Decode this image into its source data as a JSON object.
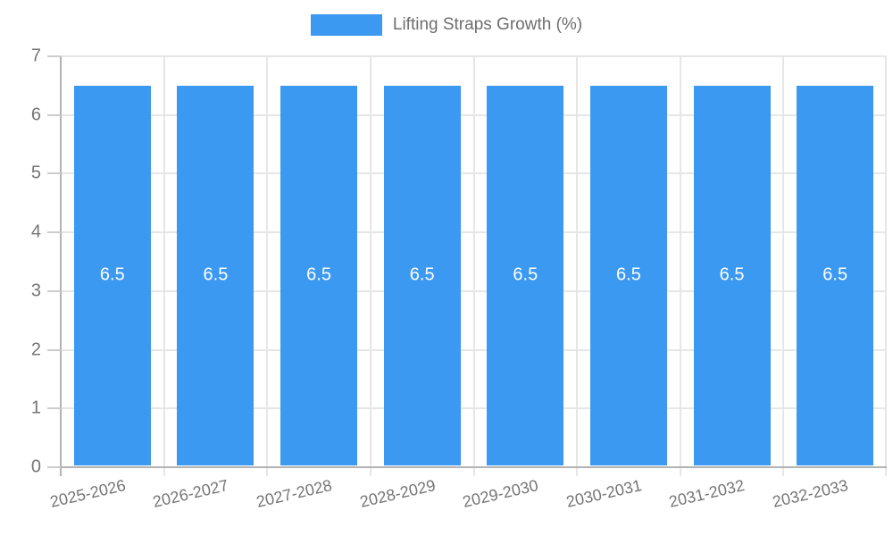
{
  "chart_data": {
    "type": "bar",
    "title": "",
    "legend": "Lifting Straps Growth (%)",
    "legend_position": "top-center",
    "categories": [
      "2025-2026",
      "2026-2027",
      "2027-2028",
      "2028-2029",
      "2029-2030",
      "2030-2031",
      "2031-2032",
      "2032-2033"
    ],
    "values": [
      6.5,
      6.5,
      6.5,
      6.5,
      6.5,
      6.5,
      6.5,
      6.5
    ],
    "value_labels": [
      "6.5",
      "6.5",
      "6.5",
      "6.5",
      "6.5",
      "6.5",
      "6.5",
      "6.5"
    ],
    "xlabel": "",
    "ylabel": "",
    "ylim": [
      0,
      7
    ],
    "ytick_labels": [
      "0",
      "1",
      "2",
      "3",
      "4",
      "5",
      "6",
      "7"
    ],
    "grid": "on",
    "bar_color": "#3b99f2",
    "value_label_color": "#ffffff",
    "axis_text_color": "#757575",
    "grid_color": "#e6e6e6",
    "axis_line_color": "#b3b3b3"
  }
}
